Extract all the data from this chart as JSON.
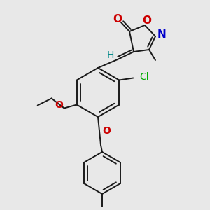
{
  "background": "#e8e8e8",
  "bond_color": "#1a1a1a",
  "bond_width": 1.4,
  "fig_width": 3.0,
  "fig_height": 3.0,
  "dpi": 100,
  "colors": {
    "O": "#cc0000",
    "N": "#0000cc",
    "Cl": "#00aa00",
    "H": "#008888",
    "C": "#1a1a1a"
  }
}
